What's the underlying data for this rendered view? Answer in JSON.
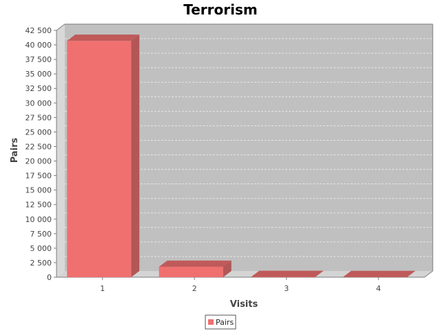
{
  "chart_data": {
    "type": "bar",
    "title": "Terrorism",
    "xlabel": "Visits",
    "ylabel": "Pairs",
    "categories": [
      "1",
      "2",
      "3",
      "4"
    ],
    "series": [
      {
        "name": "Pairs",
        "values": [
          40700,
          1800,
          50,
          30
        ]
      }
    ],
    "ylim": [
      0,
      42500
    ],
    "ytick_step": 2500,
    "ytick_labels": [
      "0",
      "2 500",
      "5 000",
      "7 500",
      "10 000",
      "12 500",
      "15 000",
      "17 500",
      "20 000",
      "22 500",
      "25 000",
      "27 500",
      "30 000",
      "32 500",
      "35 000",
      "37 500",
      "40 000",
      "42 500"
    ],
    "grid": true,
    "legend_position": "bottom-center",
    "colors": {
      "bar_front": "#f07070",
      "bar_top": "#c05a5a",
      "bar_side": "#b25656",
      "plot_back": "#c0c0c0",
      "wall_left": "#d8d8d8",
      "floor": "#d4d4d4",
      "grid": "#e6e6e6",
      "axis": "#7a7a7a"
    }
  }
}
